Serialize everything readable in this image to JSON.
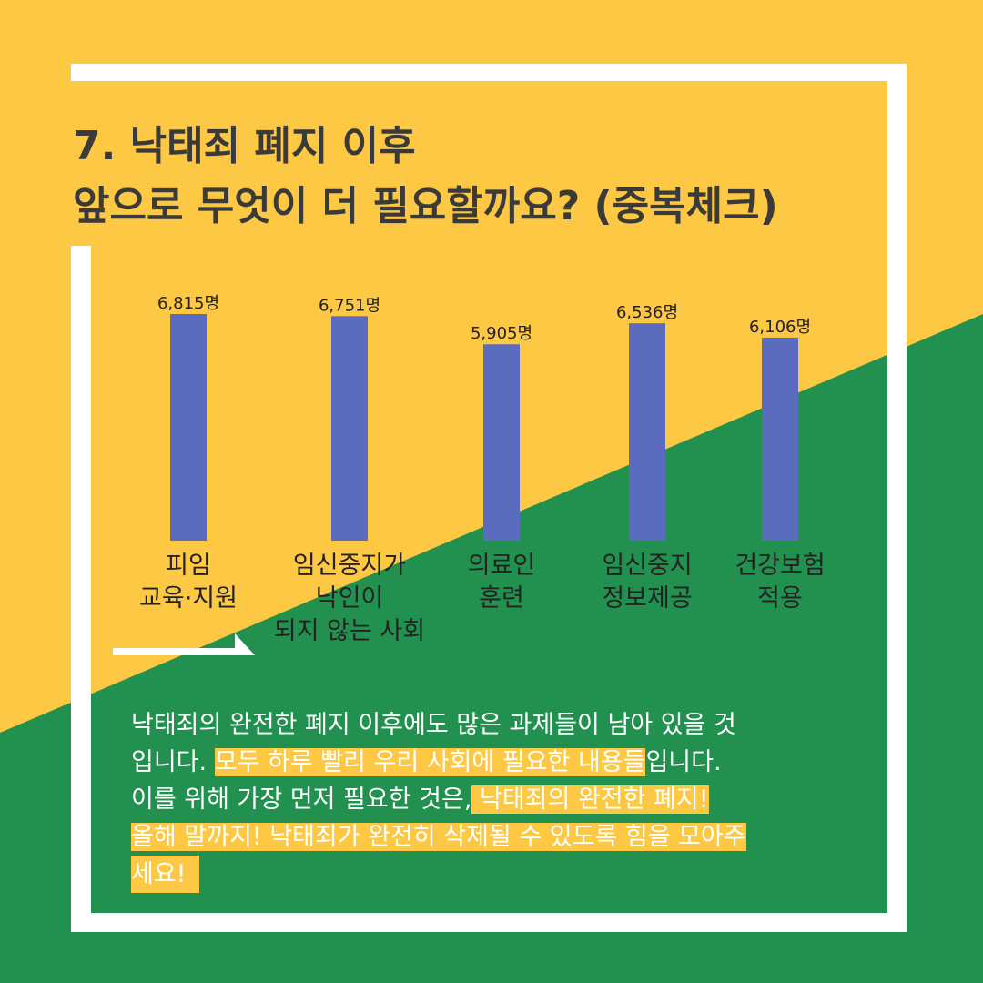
{
  "title_line1": "7. 낙태죄 폐지 이후",
  "title_line2": "앞으로 무엇이 더 필요할까요? (중복체크)",
  "colors": {
    "yellow": "#fdc844",
    "green": "#22904f",
    "bar": "#5b6cbf",
    "frame": "#ffffff",
    "title": "#3a3a3a"
  },
  "chart_data": {
    "type": "bar",
    "categories": [
      [
        "피임",
        "교육·지원"
      ],
      [
        "임신중지가",
        "낙인이",
        "되지 않는 사회"
      ],
      [
        "의료인",
        "훈련"
      ],
      [
        "임신중지",
        "정보제공"
      ],
      [
        "건강보험",
        "적용"
      ]
    ],
    "values": [
      6815,
      6751,
      5905,
      6536,
      6106
    ],
    "value_labels": [
      "6,815명",
      "6,751명",
      "5,905명",
      "6,536명",
      "6,106명"
    ],
    "ylim": [
      0,
      7000
    ]
  },
  "body": {
    "p1": "낙태죄의 완전한 폐지 이후에도 많은 과제들이 남아 있을 것",
    "p2a": "입니다. ",
    "p2b": "모두 하루 빨리 우리 사회에 필요한 내용들",
    "p2c": "입니다.",
    "p3a": "이를 위해 가장 먼저 필요한 것은,",
    "p3b": " 낙태죄의 완전한 폐지!",
    "p4": "올해 말까지! 낙태죄가 완전히 삭제될 수 있도록 힘을 모아주",
    "p5": "세요!"
  }
}
